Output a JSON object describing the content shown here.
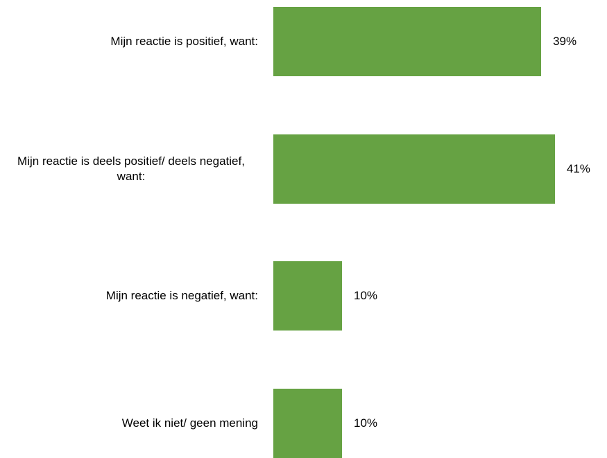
{
  "chart_data": {
    "type": "bar",
    "orientation": "horizontal",
    "categories": [
      "Mijn reactie is positief, want:",
      "Mijn reactie is deels positief/ deels negatief, want:",
      "Mijn reactie is negatief, want:",
      "Weet ik niet/ geen mening"
    ],
    "values": [
      39,
      41,
      10,
      10
    ],
    "value_labels": [
      "39%",
      "41%",
      "10%",
      "10%"
    ],
    "color": "#66a243"
  }
}
